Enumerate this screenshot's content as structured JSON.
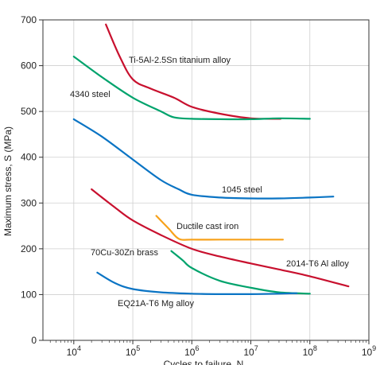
{
  "chart_data": {
    "type": "line",
    "title": "",
    "xlabel": "Cycles to failure, N",
    "ylabel": "Maximum stress, S (MPa)",
    "x_scale": "log",
    "xlim": [
      3000,
      1000000000
    ],
    "ylim": [
      0,
      700
    ],
    "grid": true,
    "y_ticks": [
      0,
      100,
      200,
      300,
      400,
      500,
      600,
      700
    ],
    "x_ticks": [
      {
        "base": "10",
        "exp": "4",
        "value": 10000
      },
      {
        "base": "10",
        "exp": "5",
        "value": 100000
      },
      {
        "base": "10",
        "exp": "6",
        "value": 1000000
      },
      {
        "base": "10",
        "exp": "7",
        "value": 10000000
      },
      {
        "base": "10",
        "exp": "8",
        "value": 100000000
      },
      {
        "base": "10",
        "exp": "9",
        "value": 1000000000
      }
    ],
    "series": [
      {
        "name": "Ti-5Al-2.5Sn titanium alloy",
        "color": "#c8102e",
        "x": [
          35000,
          60000,
          100000,
          200000,
          500000,
          1000000,
          3000000,
          10000000,
          32000000
        ],
        "y": [
          690,
          620,
          570,
          550,
          530,
          510,
          495,
          485,
          484
        ]
      },
      {
        "name": "4340 steel",
        "color": "#00a36c",
        "x": [
          10000,
          30000,
          100000,
          300000,
          500000,
          1000000,
          3000000,
          10000000,
          30000000,
          100000000
        ],
        "y": [
          620,
          575,
          530,
          500,
          487,
          484,
          483,
          483,
          485,
          484
        ]
      },
      {
        "name": "1045 steel",
        "color": "#0a74c4",
        "x": [
          10000,
          30000,
          100000,
          300000,
          600000,
          1000000,
          3000000,
          10000000,
          30000000,
          100000000,
          250000000
        ],
        "y": [
          483,
          445,
          395,
          350,
          330,
          318,
          312,
          310,
          310,
          312,
          314
        ]
      },
      {
        "name": "Ductile cast iron",
        "color": "#f7a21b",
        "x": [
          250000,
          400000,
          600000,
          1000000,
          3000000,
          10000000,
          35000000
        ],
        "y": [
          272,
          245,
          222,
          220,
          220,
          220,
          220
        ]
      },
      {
        "name": "2014-T6 Al alloy",
        "color": "#c8102e",
        "x": [
          20000,
          50000,
          100000,
          300000,
          1000000,
          3000000,
          10000000,
          30000000,
          100000000,
          450000000
        ],
        "y": [
          330,
          290,
          262,
          230,
          200,
          183,
          168,
          155,
          140,
          118
        ]
      },
      {
        "name": "70Cu-30Zn brass",
        "color": "#00a36c",
        "x": [
          450000,
          700000,
          1000000,
          3000000,
          10000000,
          30000000,
          100000000
        ],
        "y": [
          195,
          175,
          158,
          130,
          115,
          105,
          102
        ]
      },
      {
        "name": "EQ21A-T6 Mg alloy",
        "color": "#0a74c4",
        "x": [
          25000,
          50000,
          100000,
          300000,
          1000000,
          3000000,
          10000000,
          30000000,
          60000000
        ],
        "y": [
          148,
          125,
          112,
          105,
          102,
          101,
          101,
          102,
          103
        ]
      }
    ]
  }
}
